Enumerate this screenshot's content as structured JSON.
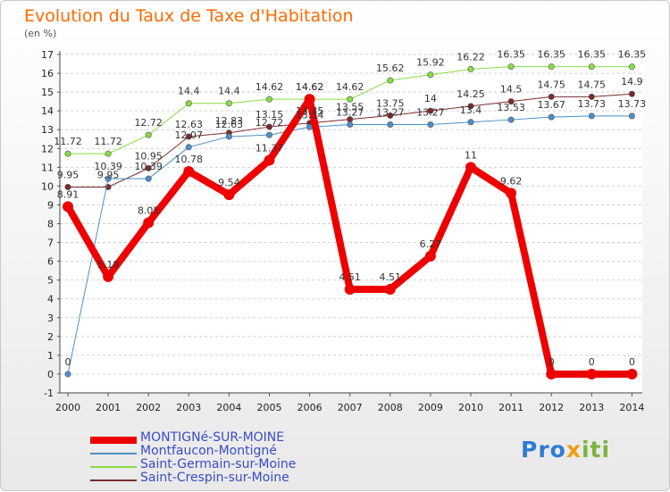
{
  "header": {
    "title": "Evolution du Taux de Taxe d'Habitation",
    "subtitle": "(en %)"
  },
  "logo": {
    "part1": "Pro",
    "part2": "x",
    "part3": "iti"
  },
  "chart_data": {
    "type": "line",
    "title": "Evolution du Taux de Taxe d'Habitation",
    "ylabel": "(en %)",
    "xlabel": "",
    "categories": [
      "2000",
      "2001",
      "2002",
      "2003",
      "2004",
      "2005",
      "2006",
      "2007",
      "2008",
      "2009",
      "2010",
      "2011",
      "2012",
      "2013",
      "2014"
    ],
    "ylim": [
      -1,
      17
    ],
    "yticks": [
      -1,
      0,
      1,
      2,
      3,
      4,
      5,
      6,
      7,
      8,
      9,
      10,
      11,
      12,
      13,
      14,
      15,
      16,
      17
    ],
    "grid": "horizontal",
    "legend_position": "bottom-left",
    "series": [
      {
        "name": "MONTIGNé-SUR-MOINE",
        "color": "#ee0000",
        "width": 8,
        "values": [
          8.91,
          5.18,
          8.05,
          10.78,
          9.54,
          11.37,
          14.62,
          4.51,
          4.51,
          6.27,
          11,
          9.62,
          0,
          0,
          0
        ],
        "labels": [
          "8.91",
          "5.18",
          "8.05",
          "10.78",
          "9.54",
          "11.37",
          "14.62",
          "4.51",
          "4.51",
          "6.27",
          "11",
          "9.62",
          "0",
          "0",
          "0"
        ]
      },
      {
        "name": "Montfaucon-Montigné",
        "color": "#4a90c8",
        "width": 1,
        "values": [
          0,
          10.39,
          10.39,
          12.07,
          12.63,
          12.72,
          13.14,
          13.27,
          13.27,
          13.27,
          13.4,
          13.53,
          13.67,
          13.73,
          13.73
        ],
        "labels": [
          "0",
          "10.39",
          "10.39",
          "12.07",
          "12.63",
          "12.72",
          "13.14",
          "13.27",
          "13.27",
          "13.27",
          "13.4",
          "13.53",
          "13.67",
          "13.73",
          "13.73"
        ]
      },
      {
        "name": "Saint-Germain-sur-Moine",
        "color": "#88dd44",
        "width": 1,
        "values": [
          11.72,
          11.72,
          12.72,
          14.4,
          14.4,
          14.62,
          14.62,
          14.62,
          15.62,
          15.92,
          16.22,
          16.35,
          16.35,
          16.35,
          16.35
        ],
        "labels": [
          "11.72",
          "11.72",
          "12.72",
          "14.4",
          "14.4",
          "14.62",
          "14.62",
          "14.62",
          "15.62",
          "15.92",
          "16.22",
          "16.35",
          "16.35",
          "16.35",
          "16.35"
        ]
      },
      {
        "name": "Saint-Crespin-sur-Moine",
        "color": "#7b2b2b",
        "width": 1,
        "values": [
          9.95,
          9.95,
          10.95,
          12.63,
          12.83,
          13.15,
          13.35,
          13.55,
          13.75,
          14,
          14.25,
          14.5,
          14.75,
          14.75,
          14.9
        ],
        "labels": [
          "9.95",
          "9.95",
          "10.95",
          "12.63",
          "12.83",
          "13.15",
          "13.35",
          "13.55",
          "13.75",
          "14",
          "14.25",
          "14.5",
          "14.75",
          "14.75",
          "14.9"
        ]
      }
    ]
  }
}
